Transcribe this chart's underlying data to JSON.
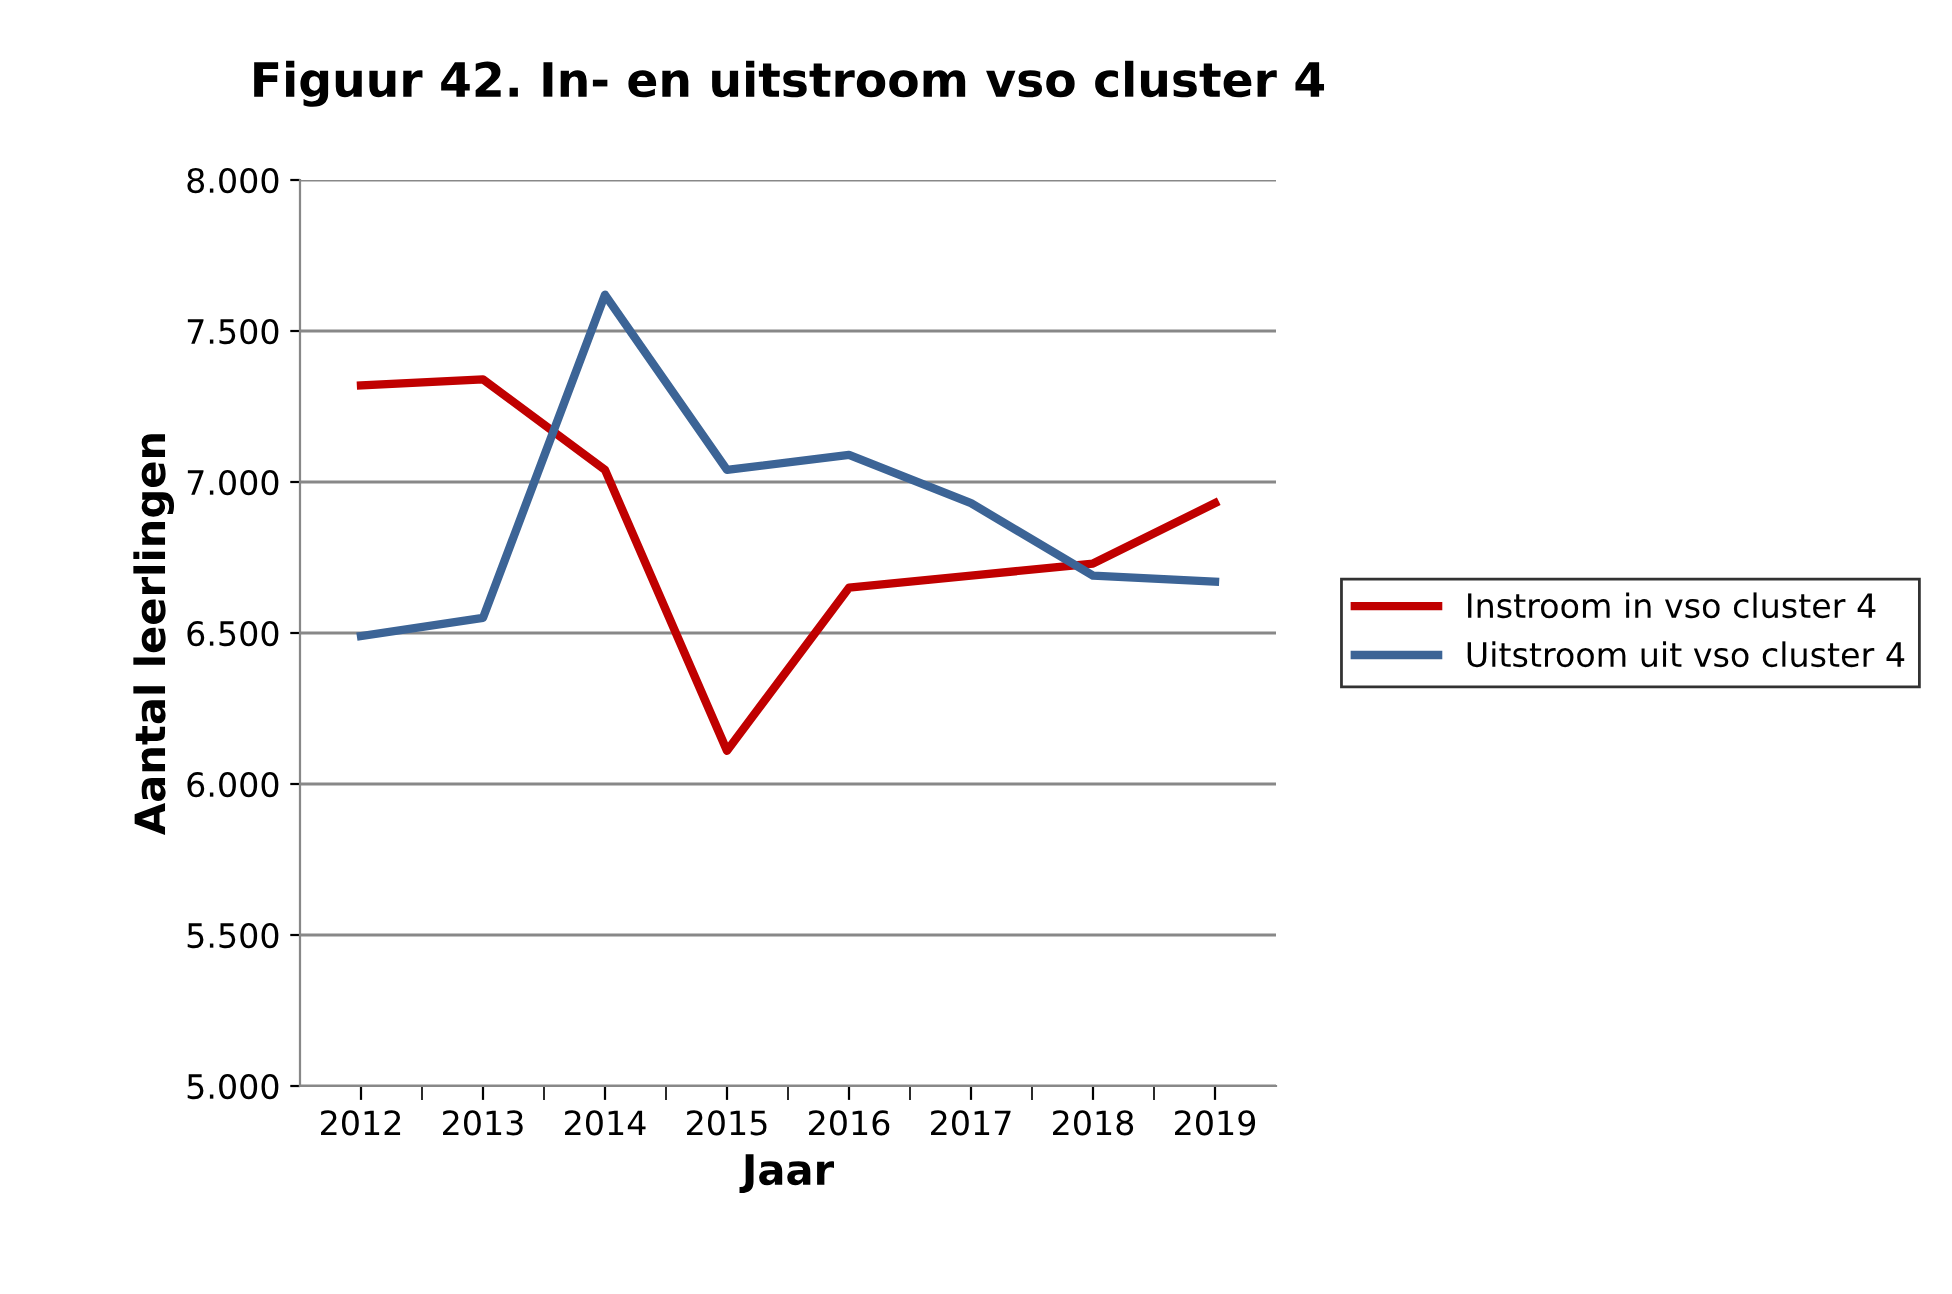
{
  "chart_data": {
    "type": "line",
    "title": "Figuur 42. In- en uitstroom vso cluster 4",
    "xlabel": "Jaar",
    "ylabel": "Aantal leerlingen",
    "categories": [
      "2012",
      "2013",
      "2014",
      "2015",
      "2016",
      "2017",
      "2018",
      "2019"
    ],
    "series": [
      {
        "name": "Instroom in vso cluster 4",
        "color": "#c00000",
        "values": [
          7320,
          7340,
          7040,
          6110,
          6650,
          6690,
          6730,
          6930
        ]
      },
      {
        "name": "Uitstroom uit vso cluster 4",
        "color": "#3c6496",
        "values": [
          6490,
          6550,
          7620,
          7040,
          7090,
          6930,
          6690,
          6670
        ]
      }
    ],
    "ylim": [
      5000,
      8000
    ],
    "yticks": [
      {
        "value": 5000,
        "label": "5.000"
      },
      {
        "value": 5500,
        "label": "5.500"
      },
      {
        "value": 6000,
        "label": "6.000"
      },
      {
        "value": 6500,
        "label": "6.500"
      },
      {
        "value": 7000,
        "label": "7.000"
      },
      {
        "value": 7500,
        "label": "7.500"
      },
      {
        "value": 8000,
        "label": "8.000"
      }
    ],
    "grid": "y",
    "legend": "right",
    "marker": "none",
    "line_style": "solid"
  }
}
